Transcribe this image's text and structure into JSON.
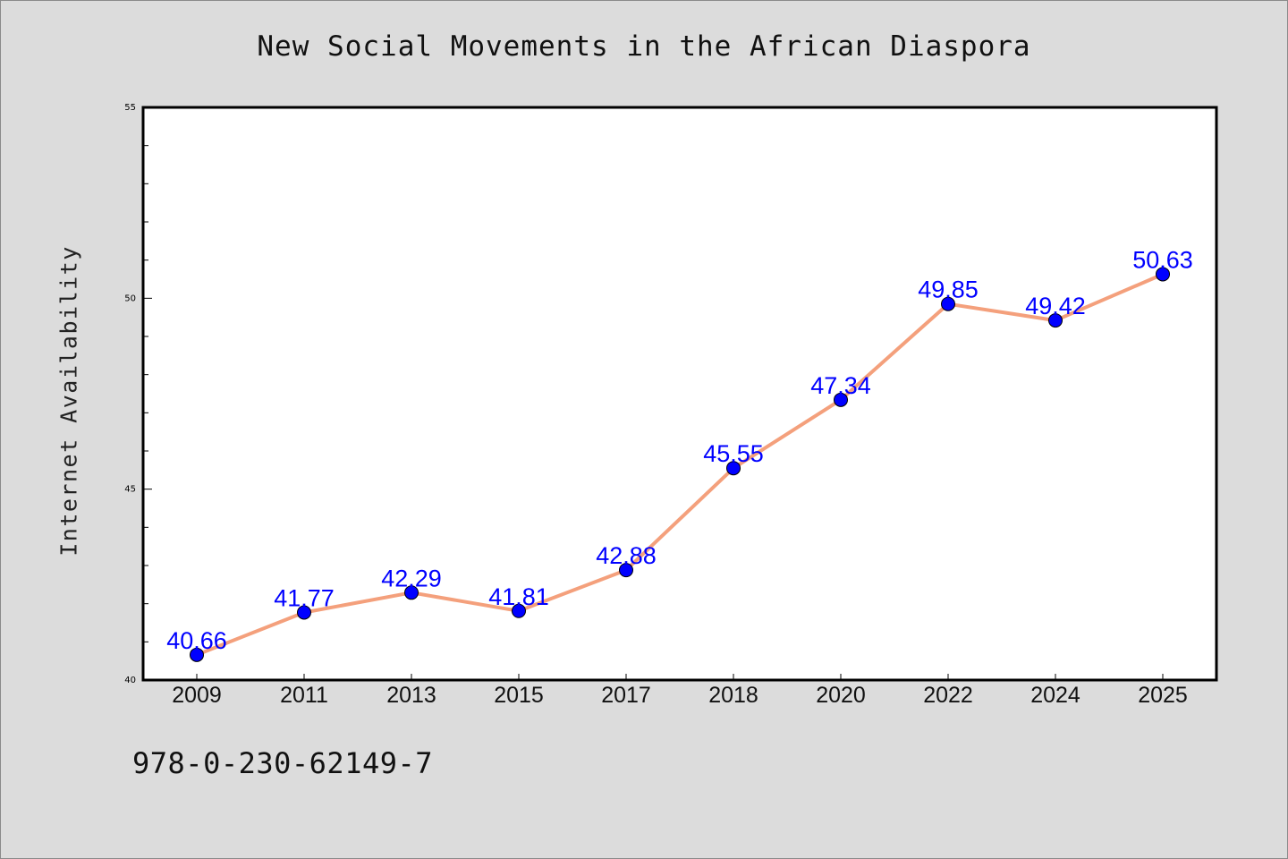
{
  "chart_data": {
    "type": "line",
    "title": "New Social Movements in the African Diaspora",
    "xlabel": "",
    "ylabel": "Internet Availability",
    "categories": [
      "2009",
      "2011",
      "2013",
      "2015",
      "2017",
      "2018",
      "2020",
      "2022",
      "2024",
      "2025"
    ],
    "series": [
      {
        "values": [
          40.66,
          41.77,
          42.29,
          41.81,
          42.88,
          45.55,
          47.34,
          49.85,
          49.42,
          50.63
        ],
        "labels": [
          "40.66",
          "41.77",
          "42.29",
          "41.81",
          "42.88",
          "45.55",
          "47.34",
          "49.85",
          "49.42",
          "50.63"
        ],
        "line_color": "#f4a07c",
        "marker_color": "#0000ff"
      }
    ],
    "ylim": [
      40,
      55
    ],
    "y_ticks": [
      "40",
      "45",
      "50",
      "55"
    ],
    "y_minor_step": 1,
    "grid": false,
    "legend": "none",
    "label_color": "#0000ff"
  },
  "footer": {
    "isbn": "978-0-230-62149-7"
  },
  "colors": {
    "background": "#dcdcdc",
    "plot_background": "#ffffff",
    "axis": "#000000"
  }
}
